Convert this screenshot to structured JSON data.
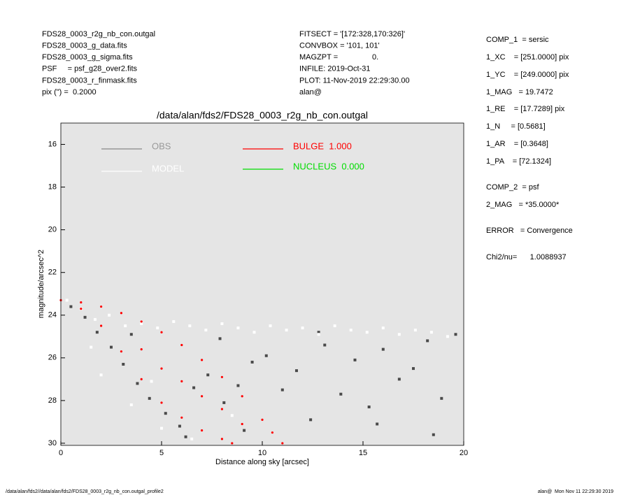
{
  "header": {
    "left": [
      "FDS28_0003_r2g_nb_con.outgal",
      "FDS28_0003_g_data.fits",
      "FDS28_0003_g_sigma.fits",
      "PSF     = psf_g28_over2.fits",
      "FDS28_0003_r_finmask.fits",
      "pix (\") =  0.2000"
    ],
    "middle": [
      "FITSECT = '[172:328,170:326]'",
      "CONVBOX = '101, 101'",
      "MAGZPT =                0.",
      "INFILE: 2019-Oct-31",
      "PLOT: 11-Nov-2019 22:29:30.00",
      "alan@"
    ],
    "right": [
      "COMP_1  = sersic",
      "1_XC    = [251.0000] pix",
      "1_YC    = [249.0000] pix",
      "1_MAG   = 19.7472",
      "1_RE    = [17.7289] pix",
      "1_N     = [0.5681]",
      "1_AR    = [0.3648]",
      "1_PA    = [72.1324]",
      "COMP_2  = psf",
      "2_MAG   = *35.0000*",
      "ERROR   = Convergence",
      "Chi2/nu=      1.0088937"
    ]
  },
  "footer": {
    "left": "/data/alan/fds2//data/alan/fds2/FDS28_0003_r2g_nb_con.outgal_profile2",
    "right": "alan@  Mon Nov 11 22:29:30 2019"
  },
  "chart_data": {
    "type": "scatter",
    "title": "/data/alan/fds2/FDS28_0003_r2g_nb_con.outgal",
    "x_label": "Distance along sky [arcsec]",
    "y_label": "magnitude/arcsec^2",
    "xlim": [
      0,
      20
    ],
    "ylim": [
      30.1,
      15
    ],
    "xticks": [
      0,
      5,
      10,
      15,
      20
    ],
    "yticks": [
      16,
      18,
      20,
      22,
      24,
      26,
      28,
      30
    ],
    "background": "#e5e5e5",
    "series": [
      {
        "name": "OBS",
        "color": "#888888",
        "marker_color": "#4a4a4a",
        "x": [
          0.5,
          1.2,
          1.8,
          2.5,
          3.1,
          3.8,
          4.4,
          5.2,
          5.9,
          6.6,
          7.3,
          8.1,
          8.8,
          9.5,
          10.2,
          11.0,
          11.7,
          12.4,
          13.1,
          13.9,
          14.6,
          15.3,
          16.0,
          16.8,
          17.5,
          18.2,
          18.9,
          19.6,
          6.2,
          9.1,
          12.8,
          15.7,
          18.5,
          3.5,
          7.9
        ],
        "values": [
          23.6,
          24.1,
          24.8,
          25.5,
          26.3,
          27.2,
          27.9,
          28.6,
          29.2,
          27.4,
          26.8,
          28.1,
          27.3,
          26.2,
          25.9,
          27.5,
          26.6,
          28.9,
          25.4,
          27.7,
          26.1,
          28.3,
          25.6,
          27.0,
          26.5,
          25.2,
          27.9,
          24.9,
          29.7,
          29.4,
          24.8,
          29.1,
          29.6,
          24.9,
          25.1
        ]
      },
      {
        "name": "MODEL",
        "color": "#ffffff",
        "marker_color": "#ffffff",
        "x": [
          0.3,
          1.0,
          1.7,
          2.4,
          3.2,
          4.0,
          4.8,
          5.6,
          6.4,
          7.2,
          8.0,
          8.8,
          9.6,
          10.4,
          11.2,
          12.0,
          12.8,
          13.6,
          14.4,
          15.2,
          16.0,
          16.8,
          17.6,
          18.4,
          19.2,
          2.0,
          3.5,
          5.0,
          6.5,
          8.5,
          1.5,
          4.5
        ],
        "values": [
          23.3,
          23.7,
          24.2,
          24.0,
          24.5,
          24.4,
          24.6,
          24.3,
          24.5,
          24.7,
          24.4,
          24.6,
          24.8,
          24.5,
          24.7,
          24.6,
          24.9,
          24.5,
          24.7,
          24.8,
          24.6,
          24.9,
          24.7,
          24.8,
          25.0,
          26.8,
          28.2,
          29.3,
          29.8,
          28.7,
          25.5,
          27.1
        ]
      },
      {
        "name": "BULGE  1.000",
        "color": "#ff0000",
        "marker_color": "#ff0000",
        "x": [
          0,
          1,
          2,
          3,
          4,
          5,
          6,
          7,
          8,
          8.5,
          1,
          2,
          3,
          4,
          5,
          6,
          7,
          8,
          9,
          10,
          10.5,
          11,
          4,
          5,
          6,
          7,
          8,
          9
        ],
        "values": [
          23.3,
          23.7,
          24.5,
          25.7,
          27.0,
          28.1,
          28.8,
          29.4,
          29.8,
          30.0,
          23.4,
          23.6,
          23.9,
          24.3,
          24.8,
          25.4,
          26.1,
          26.9,
          27.8,
          28.9,
          29.5,
          30.0,
          25.6,
          26.5,
          27.1,
          27.8,
          28.4,
          29.1
        ]
      },
      {
        "name": "NUCLEUS  0.000",
        "color": "#00dd00"
      }
    ]
  }
}
